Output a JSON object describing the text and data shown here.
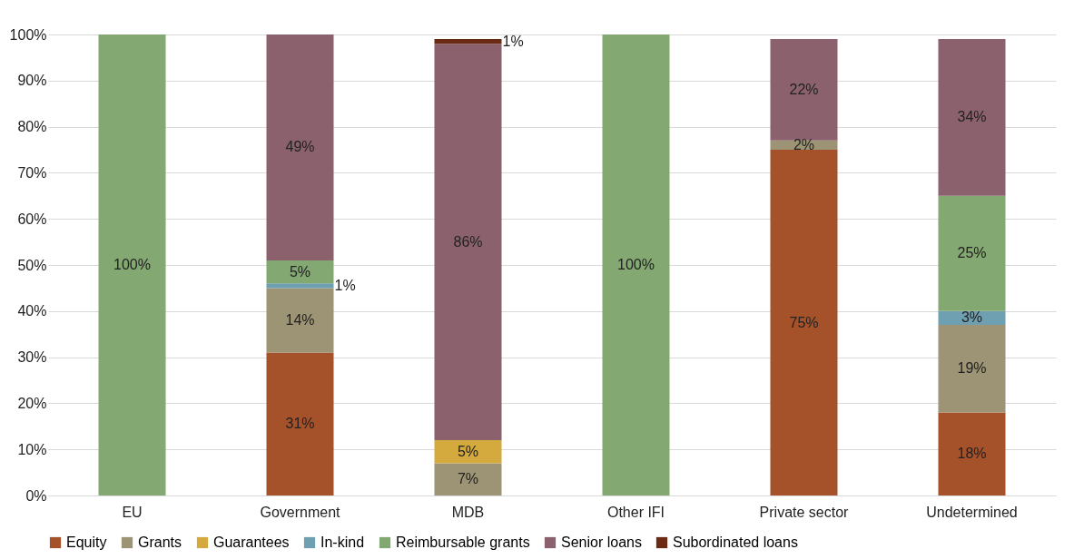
{
  "chart_data": {
    "type": "bar",
    "stacked": true,
    "categories": [
      "EU",
      "Government",
      "MDB",
      "Other IFI",
      "Private sector",
      "Undetermined"
    ],
    "series": [
      {
        "name": "Equity",
        "color": "#a5522a",
        "values": [
          null,
          31,
          null,
          null,
          75,
          18
        ],
        "value_labels": [
          null,
          "31%",
          null,
          null,
          "75%",
          "18%"
        ]
      },
      {
        "name": "Grants",
        "color": "#9c9474",
        "values": [
          null,
          14,
          7,
          null,
          2,
          19
        ],
        "value_labels": [
          null,
          "14%",
          "7%",
          null,
          "2%",
          "19%"
        ]
      },
      {
        "name": "Guarantees",
        "color": "#d4a93e",
        "values": [
          null,
          null,
          5,
          null,
          null,
          null
        ],
        "value_labels": [
          null,
          null,
          "5%",
          null,
          null,
          null
        ]
      },
      {
        "name": "In-kind",
        "color": "#6fa0b2",
        "values": [
          null,
          1,
          null,
          null,
          null,
          3
        ],
        "value_labels": [
          null,
          "1%",
          null,
          null,
          null,
          "3%"
        ]
      },
      {
        "name": "Reimbursable grants",
        "color": "#84a872",
        "values": [
          100,
          5,
          null,
          100,
          null,
          25
        ],
        "value_labels": [
          "100%",
          "5%",
          null,
          "100%",
          null,
          "25%"
        ]
      },
      {
        "name": "Senior loans",
        "color": "#8b616e",
        "values": [
          null,
          49,
          86,
          null,
          22,
          34
        ],
        "value_labels": [
          null,
          "49%",
          "86%",
          null,
          "22%",
          "34%"
        ]
      },
      {
        "name": "Subordinated loans",
        "color": "#6b2a14",
        "values": [
          null,
          null,
          1,
          null,
          null,
          null
        ],
        "value_labels": [
          null,
          null,
          "1%",
          null,
          null,
          null
        ]
      }
    ],
    "ylim": [
      0,
      100
    ],
    "yticks": [
      {
        "value": 0,
        "label": "0%"
      },
      {
        "value": 10,
        "label": "10%"
      },
      {
        "value": 20,
        "label": "20%"
      },
      {
        "value": 30,
        "label": "30%"
      },
      {
        "value": 40,
        "label": "40%"
      },
      {
        "value": 50,
        "label": "50%"
      },
      {
        "value": 60,
        "label": "60%"
      },
      {
        "value": 70,
        "label": "70%"
      },
      {
        "value": 80,
        "label": "80%"
      },
      {
        "value": 90,
        "label": "90%"
      },
      {
        "value": 100,
        "label": "100%"
      }
    ],
    "grid": "y",
    "legend": "bottom"
  }
}
